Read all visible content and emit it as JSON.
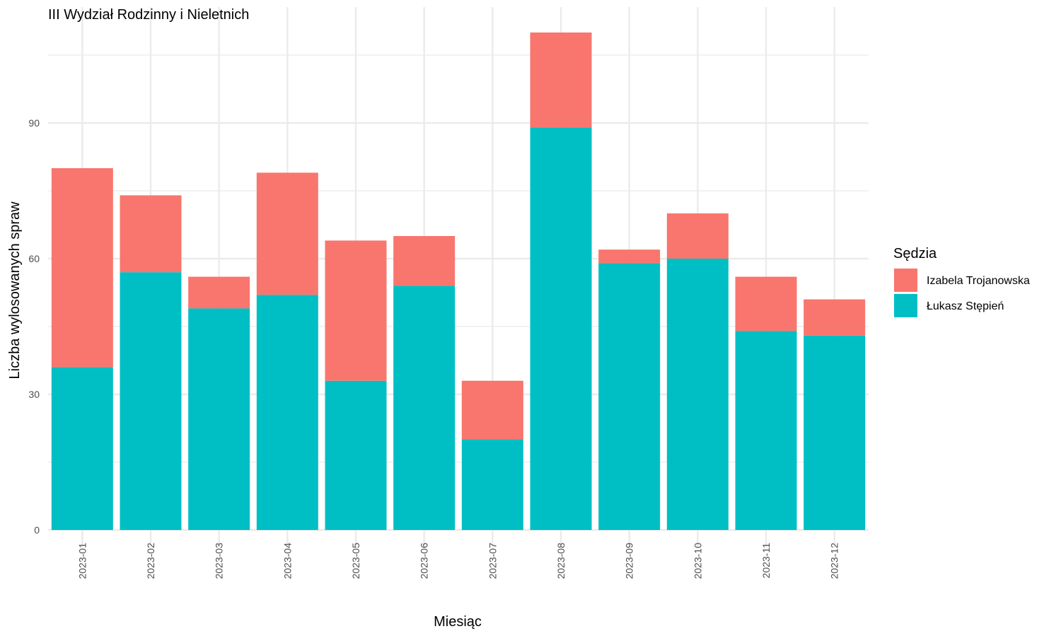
{
  "chart_data": {
    "type": "bar",
    "stacked": true,
    "title": "III Wydział Rodzinny i Nieletnich",
    "xlabel": "Miesiąc",
    "ylabel": "Liczba wylosowanych spraw",
    "categories": [
      "2023-01",
      "2023-02",
      "2023-03",
      "2023-04",
      "2023-05",
      "2023-06",
      "2023-07",
      "2023-08",
      "2023-09",
      "2023-10",
      "2023-11",
      "2023-12"
    ],
    "series": [
      {
        "name": "Łukasz Stępień",
        "color": "#00BFC4",
        "values": [
          36,
          57,
          49,
          52,
          33,
          54,
          20,
          89,
          59,
          60,
          44,
          43
        ]
      },
      {
        "name": "Izabela Trojanowska",
        "color": "#F8766D",
        "values": [
          44,
          17,
          7,
          27,
          31,
          11,
          13,
          21,
          3,
          10,
          12,
          8
        ]
      }
    ],
    "ylim": [
      0,
      110
    ],
    "yticks": [
      0,
      30,
      60,
      90
    ],
    "grid": true,
    "legend": {
      "title": "Sędzia",
      "position": "right",
      "order": [
        "Izabela Trojanowska",
        "Łukasz Stępień"
      ]
    }
  }
}
